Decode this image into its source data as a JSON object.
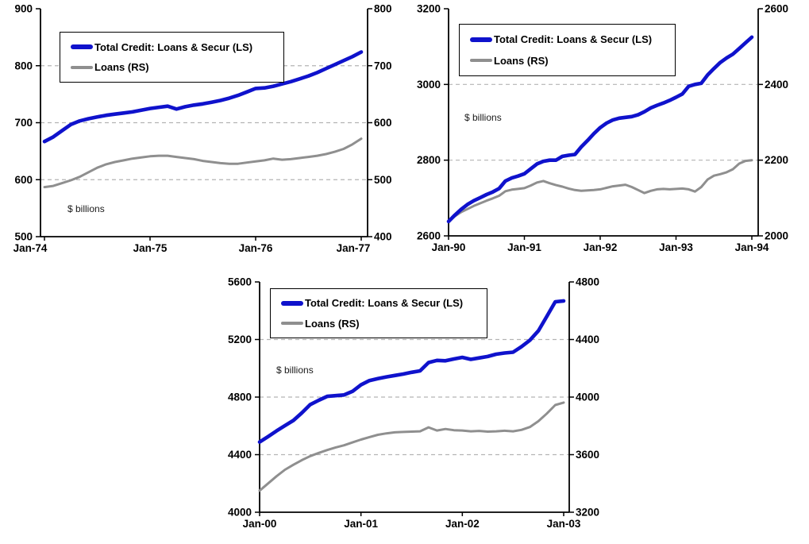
{
  "figure": {
    "background": "#ffffff",
    "description_visible_text_only": true
  },
  "colors": {
    "total_credit_line": "#0f12cc",
    "loans_line": "#8f8f8f",
    "gridline": "#b4b4b4",
    "axis": "#000000",
    "text": "#000000"
  },
  "legend_labels": {
    "total_credit": "Total Credit: Loans & Secur (LS)",
    "loans": "Loans (RS)"
  },
  "chart_data": [
    {
      "type": "line",
      "unit_label": "$ billions",
      "x_tick_labels": [
        "Jan-74",
        "Jan-75",
        "Jan-76",
        "Jan-77"
      ],
      "left_axis": {
        "min": 500,
        "max": 900,
        "ticks": [
          500,
          600,
          700,
          800,
          900
        ]
      },
      "right_axis": {
        "min": 400,
        "max": 800,
        "ticks": [
          400,
          500,
          600,
          700,
          800
        ]
      },
      "grid": "dashed horizontal at interior left ticks",
      "legend_position": "top-left",
      "series": [
        {
          "name": "Total Credit: Loans & Secur (LS)",
          "axis": "left",
          "color": "#0f12cc",
          "stroke_width": 4.6,
          "values": [
            667,
            675,
            686,
            697,
            703,
            707,
            710,
            713,
            715,
            717,
            719,
            722,
            725,
            727,
            729,
            724,
            728,
            731,
            733,
            736,
            739,
            743,
            748,
            754,
            760,
            761,
            764,
            768,
            772,
            777,
            782,
            788,
            795,
            802,
            809,
            816,
            824
          ]
        },
        {
          "name": "Loans (RS)",
          "axis": "right",
          "color": "#8f8f8f",
          "stroke_width": 3,
          "values": [
            487,
            489,
            494,
            499,
            505,
            513,
            521,
            527,
            531,
            534,
            537,
            539,
            541,
            542,
            542,
            540,
            538,
            536,
            533,
            531,
            529,
            528,
            528,
            530,
            532,
            534,
            537,
            535,
            536,
            538,
            540,
            542,
            545,
            549,
            554,
            562,
            572
          ]
        }
      ]
    },
    {
      "type": "line",
      "unit_label": "$ billions",
      "x_tick_labels": [
        "Jan-90",
        "Jan-91",
        "Jan-92",
        "Jan-93",
        "Jan-94"
      ],
      "left_axis": {
        "min": 2600,
        "max": 3200,
        "ticks": [
          2600,
          2800,
          3000,
          3200
        ]
      },
      "right_axis": {
        "min": 2000,
        "max": 2600,
        "ticks": [
          2000,
          2200,
          2400,
          2600
        ]
      },
      "grid": "dashed horizontal at interior left ticks",
      "legend_position": "top-left",
      "series": [
        {
          "name": "Total Credit: Loans & Secur (LS)",
          "axis": "left",
          "color": "#0f12cc",
          "stroke_width": 4.6,
          "values": [
            2638,
            2655,
            2670,
            2683,
            2693,
            2701,
            2709,
            2716,
            2725,
            2745,
            2753,
            2758,
            2764,
            2777,
            2790,
            2797,
            2800,
            2800,
            2810,
            2813,
            2815,
            2835,
            2852,
            2870,
            2886,
            2898,
            2906,
            2911,
            2913,
            2915,
            2920,
            2928,
            2938,
            2945,
            2951,
            2958,
            2966,
            2975,
            2995,
            3000,
            3003,
            3025,
            3042,
            3058,
            3070,
            3080,
            3095,
            3110,
            3125
          ]
        },
        {
          "name": "Loans (RS)",
          "axis": "right",
          "color": "#8f8f8f",
          "stroke_width": 3,
          "values": [
            2038,
            2052,
            2063,
            2071,
            2079,
            2086,
            2093,
            2099,
            2106,
            2118,
            2122,
            2124,
            2126,
            2133,
            2141,
            2145,
            2139,
            2134,
            2130,
            2125,
            2121,
            2119,
            2120,
            2121,
            2123,
            2127,
            2131,
            2133,
            2135,
            2129,
            2121,
            2113,
            2119,
            2123,
            2124,
            2123,
            2124,
            2125,
            2123,
            2117,
            2129,
            2149,
            2159,
            2163,
            2168,
            2176,
            2191,
            2198,
            2200
          ]
        }
      ]
    },
    {
      "type": "line",
      "unit_label": "$ billions",
      "x_tick_labels": [
        "Jan-00",
        "Jan-01",
        "Jan-02",
        "Jan-03"
      ],
      "left_axis": {
        "min": 4000,
        "max": 5600,
        "ticks": [
          4000,
          4400,
          4800,
          5200,
          5600
        ]
      },
      "right_axis": {
        "min": 3200,
        "max": 4800,
        "ticks": [
          3200,
          3600,
          4000,
          4400,
          4800
        ]
      },
      "grid": "dashed horizontal at interior left ticks",
      "legend_position": "top-center",
      "series": [
        {
          "name": "Total Credit: Loans & Secur (LS)",
          "axis": "left",
          "color": "#0f12cc",
          "stroke_width": 4.6,
          "values": [
            4488,
            4525,
            4565,
            4602,
            4638,
            4690,
            4748,
            4778,
            4805,
            4810,
            4815,
            4840,
            4885,
            4915,
            4928,
            4940,
            4950,
            4960,
            4972,
            4982,
            5040,
            5055,
            5052,
            5065,
            5076,
            5062,
            5072,
            5082,
            5098,
            5106,
            5112,
            5150,
            5195,
            5260,
            5360,
            5462,
            5468
          ]
        },
        {
          "name": "Loans (RS)",
          "axis": "right",
          "color": "#8f8f8f",
          "stroke_width": 3,
          "values": [
            3350,
            3400,
            3450,
            3495,
            3530,
            3562,
            3590,
            3612,
            3632,
            3650,
            3665,
            3685,
            3705,
            3722,
            3738,
            3748,
            3755,
            3758,
            3760,
            3762,
            3790,
            3768,
            3778,
            3770,
            3768,
            3762,
            3765,
            3760,
            3762,
            3766,
            3762,
            3772,
            3792,
            3832,
            3885,
            3945,
            3962
          ]
        }
      ]
    }
  ]
}
